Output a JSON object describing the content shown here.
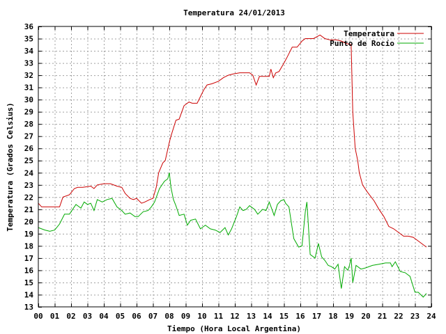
{
  "chart_data": {
    "type": "line",
    "title": "Temperatura 24/01/2013",
    "xlabel": "Tiempo (Hora Local Argentina)",
    "ylabel": "Temperatura (Grados Celsius)",
    "xlim": [
      0,
      24
    ],
    "ylim": [
      13,
      36
    ],
    "xticks": [
      "00",
      "01",
      "02",
      "03",
      "04",
      "05",
      "06",
      "07",
      "08",
      "09",
      "10",
      "11",
      "12",
      "13",
      "14",
      "15",
      "16",
      "17",
      "18",
      "19",
      "20",
      "21",
      "22",
      "23",
      "24"
    ],
    "yticks": [
      "13",
      "14",
      "15",
      "16",
      "17",
      "18",
      "19",
      "20",
      "21",
      "22",
      "23",
      "24",
      "25",
      "26",
      "27",
      "28",
      "29",
      "30",
      "31",
      "32",
      "33",
      "34",
      "35",
      "36"
    ],
    "grid": true,
    "legend_position": "top-right",
    "series": [
      {
        "name": "Temperatura",
        "color": "#cc0000",
        "x": [
          0.0,
          0.2,
          0.4,
          1.3,
          1.5,
          1.9,
          2.2,
          2.4,
          2.7,
          3.2,
          3.4,
          3.6,
          4.0,
          4.4,
          4.8,
          5.1,
          5.3,
          5.6,
          5.8,
          6.0,
          6.3,
          6.5,
          6.8,
          7.0,
          7.2,
          7.35,
          7.6,
          7.75,
          8.0,
          8.1,
          8.4,
          8.6,
          8.9,
          9.2,
          9.4,
          9.7,
          10.1,
          10.3,
          10.6,
          11.0,
          11.3,
          11.6,
          11.9,
          12.3,
          12.6,
          12.9,
          13.1,
          13.3,
          13.5,
          13.8,
          14.1,
          14.2,
          14.35,
          14.5,
          14.7,
          15.0,
          15.2,
          15.5,
          15.8,
          16.1,
          16.3,
          16.5,
          16.8,
          17.2,
          17.5,
          17.8,
          18.2,
          18.5,
          18.8,
          19.1,
          19.2,
          19.35,
          19.5,
          19.6,
          19.8,
          20.1,
          20.5,
          20.8,
          21.1,
          21.4,
          21.7,
          22.0,
          22.3,
          22.6,
          22.9,
          23.1,
          23.4,
          23.7
        ],
        "values": [
          21.5,
          21.2,
          21.2,
          21.2,
          22.0,
          22.2,
          22.7,
          22.8,
          22.8,
          22.9,
          22.7,
          23.0,
          23.1,
          23.1,
          22.9,
          22.8,
          22.3,
          21.9,
          21.8,
          21.9,
          21.5,
          21.6,
          21.8,
          21.9,
          22.8,
          24.0,
          24.8,
          25.0,
          26.5,
          27.0,
          28.3,
          28.4,
          29.5,
          29.8,
          29.7,
          29.7,
          30.8,
          31.2,
          31.3,
          31.5,
          31.8,
          32.0,
          32.1,
          32.2,
          32.2,
          32.2,
          32.0,
          31.2,
          31.9,
          31.9,
          31.9,
          32.5,
          31.8,
          32.2,
          32.3,
          33.0,
          33.5,
          34.3,
          34.3,
          34.8,
          35.0,
          35.0,
          35.0,
          35.3,
          35.0,
          34.9,
          34.9,
          34.8,
          34.6,
          34.5,
          29.0,
          26.0,
          25.0,
          24.0,
          23.0,
          22.4,
          21.7,
          21.0,
          20.4,
          19.6,
          19.4,
          19.1,
          18.8,
          18.8,
          18.7,
          18.5,
          18.2,
          17.9
        ]
      },
      {
        "name": "Punto de Rocío",
        "color": "#00aa00",
        "x": [
          0.0,
          0.2,
          0.4,
          0.7,
          1.0,
          1.3,
          1.6,
          1.9,
          2.1,
          2.3,
          2.6,
          2.8,
          3.0,
          3.2,
          3.4,
          3.6,
          3.9,
          4.2,
          4.5,
          4.8,
          5.1,
          5.3,
          5.6,
          5.9,
          6.1,
          6.4,
          6.7,
          6.9,
          7.1,
          7.4,
          7.7,
          7.9,
          8.0,
          8.1,
          8.25,
          8.4,
          8.6,
          8.9,
          9.1,
          9.3,
          9.6,
          9.9,
          10.2,
          10.5,
          10.8,
          11.1,
          11.4,
          11.6,
          11.8,
          12.1,
          12.3,
          12.5,
          12.7,
          12.9,
          13.2,
          13.4,
          13.7,
          13.9,
          14.1,
          14.4,
          14.6,
          14.8,
          15.0,
          15.1,
          15.3,
          15.6,
          15.9,
          16.1,
          16.3,
          16.4,
          16.6,
          16.9,
          17.1,
          17.3,
          17.5,
          17.7,
          17.9,
          18.1,
          18.3,
          18.5,
          18.7,
          18.9,
          19.0,
          19.1,
          19.2,
          19.4,
          19.7,
          20.0,
          20.4,
          20.8,
          21.2,
          21.5,
          21.6,
          21.8,
          22.1,
          22.4,
          22.7,
          23.0,
          23.2,
          23.5,
          23.7
        ],
        "values": [
          19.5,
          19.4,
          19.3,
          19.2,
          19.3,
          19.8,
          20.6,
          20.6,
          21.0,
          21.4,
          21.1,
          21.6,
          21.4,
          21.5,
          20.9,
          21.8,
          21.6,
          21.8,
          21.9,
          21.2,
          20.9,
          20.6,
          20.7,
          20.4,
          20.4,
          20.8,
          20.9,
          21.2,
          21.6,
          22.7,
          23.3,
          23.5,
          24.0,
          22.8,
          21.8,
          21.3,
          20.5,
          20.6,
          19.7,
          20.1,
          20.2,
          19.4,
          19.7,
          19.4,
          19.3,
          19.1,
          19.5,
          18.9,
          19.4,
          20.4,
          21.2,
          20.9,
          21.0,
          21.3,
          21.0,
          20.6,
          21.0,
          20.9,
          21.6,
          20.5,
          21.4,
          21.7,
          21.8,
          21.5,
          21.2,
          18.6,
          17.9,
          18.0,
          20.8,
          21.6,
          17.3,
          17.0,
          18.2,
          17.1,
          16.8,
          16.4,
          16.3,
          16.1,
          16.5,
          14.5,
          16.3,
          16.0,
          16.4,
          17.0,
          15.0,
          16.4,
          16.1,
          16.2,
          16.4,
          16.5,
          16.6,
          16.6,
          16.3,
          16.7,
          15.9,
          15.8,
          15.5,
          14.2,
          14.2,
          13.8,
          14.1
        ]
      }
    ]
  }
}
